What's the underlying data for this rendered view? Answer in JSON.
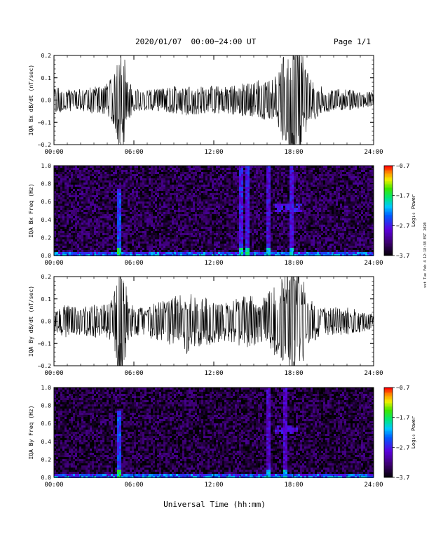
{
  "header": {
    "title": "2020/01/07  00:00−24:00 UT",
    "page": "Page 1/1"
  },
  "footer": {
    "xlabel": "Universal Time (hh:mm)",
    "side_note": "sst Tue Feb 4 12:18:38 EST 2020"
  },
  "chart_data": [
    {
      "type": "line",
      "ylabel": "IQA Bx dB/dt (nT/sec)",
      "ylim": [
        -0.2,
        0.2
      ],
      "yticks": [
        "0.2",
        "0.1",
        "0.0",
        "−0.1",
        "−0.2"
      ],
      "xlim": [
        0,
        24
      ],
      "xticks": [
        "00:00",
        "06:00",
        "12:00",
        "18:00",
        "24:00"
      ],
      "series": [
        {
          "x": [
            0,
            1,
            2,
            3,
            4,
            4.5,
            4.8,
            5.0,
            5.2,
            5.5,
            6,
            7,
            8,
            9,
            10,
            11,
            12,
            13,
            14,
            15,
            15.5,
            16,
            16.5,
            17,
            17.5,
            18,
            18.5,
            19,
            20,
            21,
            22,
            23,
            24
          ],
          "amplitude": [
            0.05,
            0.04,
            0.04,
            0.05,
            0.06,
            0.09,
            0.2,
            0.2,
            0.2,
            0.08,
            0.04,
            0.04,
            0.04,
            0.05,
            0.06,
            0.05,
            0.05,
            0.05,
            0.06,
            0.06,
            0.08,
            0.07,
            0.08,
            0.12,
            0.2,
            0.2,
            0.2,
            0.1,
            0.05,
            0.04,
            0.04,
            0.03,
            0.03
          ]
        }
      ]
    },
    {
      "type": "heatmap",
      "ylabel": "IQA Bx Freq (Hz)",
      "ylim": [
        0,
        1.0
      ],
      "yticks": [
        "1.0",
        "0.8",
        "0.6",
        "0.4",
        "0.2",
        "0.0"
      ],
      "xlim": [
        0,
        24
      ],
      "xticks": [
        "00:00",
        "06:00",
        "12:00",
        "18:00",
        "24:00"
      ],
      "colorbar": {
        "label": "Log₁₀ Power",
        "range": [
          -3.7,
          -0.7
        ],
        "ticks": [
          "−0.7",
          "−1.7",
          "−2.7",
          "−3.7"
        ]
      },
      "features": {
        "background": -3.4,
        "low_freq_band": -2.6,
        "columns": [
          {
            "t": 4.8,
            "fmax": 0.75,
            "level": -2.5
          },
          {
            "t": 14.0,
            "fmax": 1.0,
            "level": -2.7
          },
          {
            "t": 14.4,
            "fmax": 1.0,
            "level": -2.7
          },
          {
            "t": 16.0,
            "fmax": 1.0,
            "level": -2.8
          },
          {
            "t": 17.8,
            "fmax": 1.0,
            "level": -2.8
          }
        ],
        "blob": {
          "t": [
            16.5,
            18.5
          ],
          "f": [
            0.5,
            0.6
          ],
          "level": -2.7
        }
      }
    },
    {
      "type": "line",
      "ylabel": "IQA By dB/dt (nT/sec)",
      "ylim": [
        -0.2,
        0.2
      ],
      "yticks": [
        "0.2",
        "0.1",
        "0.0",
        "−0.1",
        "−0.2"
      ],
      "xlim": [
        0,
        24
      ],
      "xticks": [
        "00:00",
        "06:00",
        "12:00",
        "18:00",
        "24:00"
      ],
      "series": [
        {
          "x": [
            0,
            1,
            2,
            3,
            4,
            4.5,
            4.8,
            5.0,
            5.2,
            5.5,
            6,
            7,
            8,
            9,
            9.5,
            10,
            10.5,
            11,
            11.5,
            12,
            13,
            14,
            15,
            15.5,
            16,
            16.5,
            17,
            17.5,
            18,
            18.5,
            19,
            20,
            21,
            22,
            23,
            24
          ],
          "amplitude": [
            0.05,
            0.06,
            0.05,
            0.06,
            0.06,
            0.09,
            0.2,
            0.2,
            0.2,
            0.1,
            0.05,
            0.06,
            0.07,
            0.09,
            0.1,
            0.12,
            0.09,
            0.1,
            0.09,
            0.08,
            0.07,
            0.1,
            0.09,
            0.07,
            0.1,
            0.12,
            0.14,
            0.2,
            0.2,
            0.2,
            0.1,
            0.05,
            0.05,
            0.05,
            0.04,
            0.03
          ]
        }
      ]
    },
    {
      "type": "heatmap",
      "ylabel": "IQA By Freq (Hz)",
      "ylim": [
        0,
        1.0
      ],
      "yticks": [
        "1.0",
        "0.8",
        "0.6",
        "0.4",
        "0.2",
        "0.0"
      ],
      "xlim": [
        0,
        24
      ],
      "xticks": [
        "00:00",
        "06:00",
        "12:00",
        "18:00",
        "24:00"
      ],
      "colorbar": {
        "label": "Log₁₀ Power",
        "range": [
          -3.7,
          -0.7
        ],
        "ticks": [
          "−0.7",
          "−1.7",
          "−2.7",
          "−3.7"
        ]
      },
      "features": {
        "background": -3.45,
        "low_freq_band": -2.6,
        "columns": [
          {
            "t": 4.8,
            "fmax": 0.75,
            "level": -2.5
          },
          {
            "t": 16.0,
            "fmax": 1.0,
            "level": -2.9
          },
          {
            "t": 17.3,
            "fmax": 1.0,
            "level": -2.9
          }
        ],
        "blob": {
          "t": [
            16.5,
            18.3
          ],
          "f": [
            0.5,
            0.6
          ],
          "level": -2.8
        }
      }
    }
  ],
  "colors": {
    "axis": "#000000",
    "trace": "#000000"
  }
}
